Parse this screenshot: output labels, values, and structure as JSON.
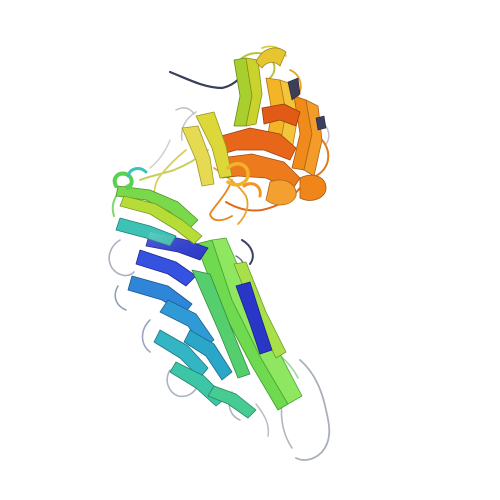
{
  "image": {
    "background": "#ffffff",
    "subject": "protein-ribbon-structure",
    "coloring": "rainbow-by-chain-position",
    "palette": {
      "blue": "#2b3fd6",
      "azure": "#2f7fd8",
      "cyan": "#2fb3c8",
      "teal": "#3cc7a0",
      "green": "#5ad85a",
      "lime": "#a6df3c",
      "yellow": "#d6cf2c",
      "gold": "#f0b01c",
      "orange": "#f0861a",
      "deep_orange": "#e0601a",
      "coil": "#9aa0a8"
    }
  }
}
